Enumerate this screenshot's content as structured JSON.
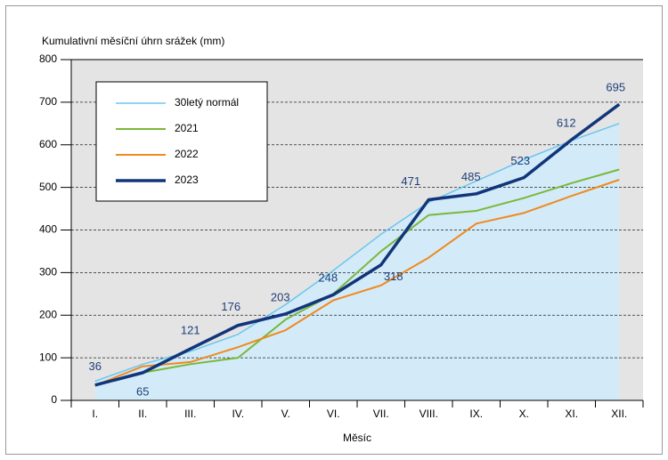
{
  "chart_data": {
    "type": "line",
    "y_label": "Kumulativní měsíční úhrn srážek (mm)",
    "x_label": "Měsíc",
    "categories": [
      "I.",
      "II.",
      "III.",
      "IV.",
      "V.",
      "VI.",
      "VII.",
      "VIII.",
      "IX.",
      "X.",
      "XI.",
      "XII."
    ],
    "series": [
      {
        "name": "30letý normál",
        "color": "#6cc5ee",
        "width": 1.5,
        "area": true,
        "area_color": "#d3ebf8",
        "values": [
          45,
          85,
          115,
          155,
          225,
          305,
          390,
          465,
          515,
          565,
          610,
          650
        ]
      },
      {
        "name": "2021",
        "color": "#7ab73a",
        "width": 2,
        "values": [
          35,
          65,
          85,
          100,
          190,
          250,
          350,
          435,
          445,
          475,
          510,
          542
        ]
      },
      {
        "name": "2022",
        "color": "#f0891e",
        "width": 2,
        "values": [
          35,
          80,
          90,
          125,
          165,
          235,
          270,
          335,
          415,
          440,
          480,
          518
        ]
      },
      {
        "name": "2023",
        "color": "#12357a",
        "width": 3.5,
        "data_labels": true,
        "values": [
          36,
          65,
          121,
          176,
          203,
          248,
          318,
          471,
          485,
          523,
          612,
          695
        ]
      }
    ],
    "ylim": [
      0,
      800
    ],
    "yticks": [
      0,
      100,
      200,
      300,
      400,
      500,
      600,
      700,
      800
    ],
    "grid": true,
    "legend": "upper left"
  }
}
